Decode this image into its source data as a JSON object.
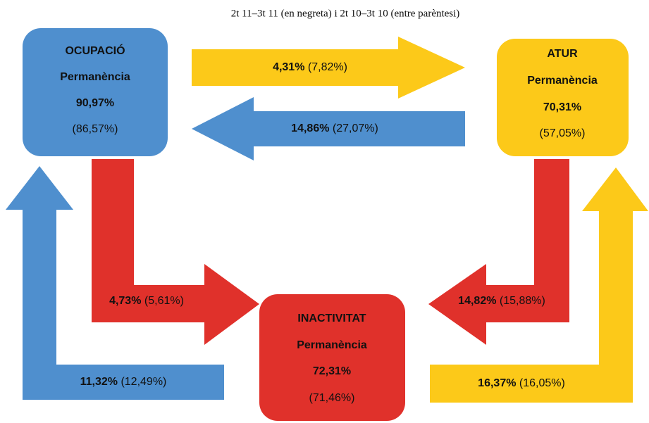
{
  "title": "2t 11–3t 11 (en negreta) i 2t 10–3t 10 (entre parèntesi)",
  "nodes": [
    {
      "name": "OCUPACIÓ",
      "label": "Permanència",
      "current": "90,97%",
      "previous": "(86,57%)"
    },
    {
      "name": "ATUR",
      "label": "Permanència",
      "current": "70,31%",
      "previous": "(57,05%)"
    },
    {
      "name": "INACTIVITAT",
      "label": "Permanència",
      "current": "72,31%",
      "previous": "(71,46%)"
    }
  ],
  "flows": [
    {
      "current": "4,31%",
      "previous": "(7,82%)"
    },
    {
      "current": "14,86%",
      "previous": "(27,07%)"
    },
    {
      "current": "4,73%",
      "previous": "(5,61%)"
    },
    {
      "current": "14,82%",
      "previous": "(15,88%)"
    },
    {
      "current": "11,32%",
      "previous": "(12,49%)"
    },
    {
      "current": "16,37%",
      "previous": "(16,05%)"
    }
  ]
}
